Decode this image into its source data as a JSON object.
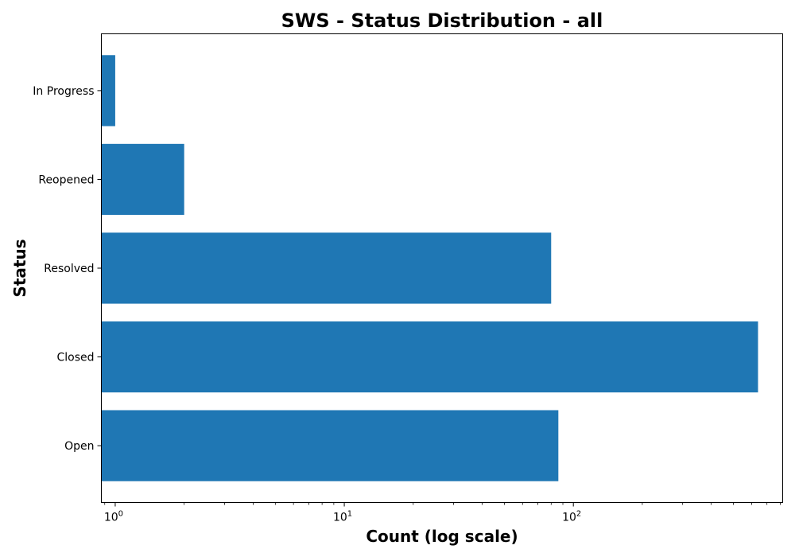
{
  "chart_data": {
    "type": "bar",
    "orientation": "horizontal",
    "title": "SWS - Status Distribution - all",
    "xlabel": "Count (log scale)",
    "ylabel": "Status",
    "x_scale": "log",
    "xlim": [
      0.87,
      820
    ],
    "x_major_ticks": [
      1,
      10,
      100
    ],
    "x_major_tick_labels": [
      {
        "base": "10",
        "exp": "0"
      },
      {
        "base": "10",
        "exp": "1"
      },
      {
        "base": "10",
        "exp": "2"
      }
    ],
    "categories": [
      "Open",
      "Closed",
      "Resolved",
      "Reopened",
      "In Progress"
    ],
    "values": [
      86,
      640,
      80,
      2,
      1
    ],
    "bar_color": "#1f77b4",
    "grid": false,
    "legend": false
  }
}
